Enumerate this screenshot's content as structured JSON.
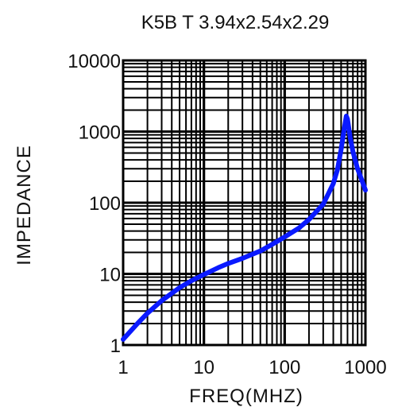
{
  "chart_data": {
    "type": "line",
    "title": "K5B T 3.94x2.54x2.29",
    "xlabel": "FREQ(MHZ)",
    "ylabel": "IMPEDANCE",
    "xscale": "log",
    "yscale": "log",
    "xlim": [
      1,
      1000
    ],
    "ylim": [
      1,
      10000
    ],
    "xticks": [
      "1",
      "10",
      "100",
      "1000"
    ],
    "yticks": [
      "1",
      "10",
      "100",
      "1000",
      "10000"
    ],
    "grid": true,
    "series": [
      {
        "color": "#0a1aff",
        "x": [
          1,
          1.5,
          2,
          3,
          5,
          7,
          10,
          15,
          20,
          30,
          50,
          70,
          100,
          150,
          200,
          300,
          400,
          450,
          500,
          550,
          580,
          600,
          620,
          650,
          700,
          800,
          900,
          1000
        ],
        "y": [
          1.2,
          2.0,
          2.8,
          4.2,
          6.4,
          8.0,
          9.8,
          12.2,
          14.0,
          16.5,
          21,
          26,
          33,
          44,
          58,
          95,
          185,
          290,
          560,
          1150,
          1650,
          1500,
          1150,
          800,
          520,
          300,
          210,
          150
        ]
      }
    ]
  }
}
